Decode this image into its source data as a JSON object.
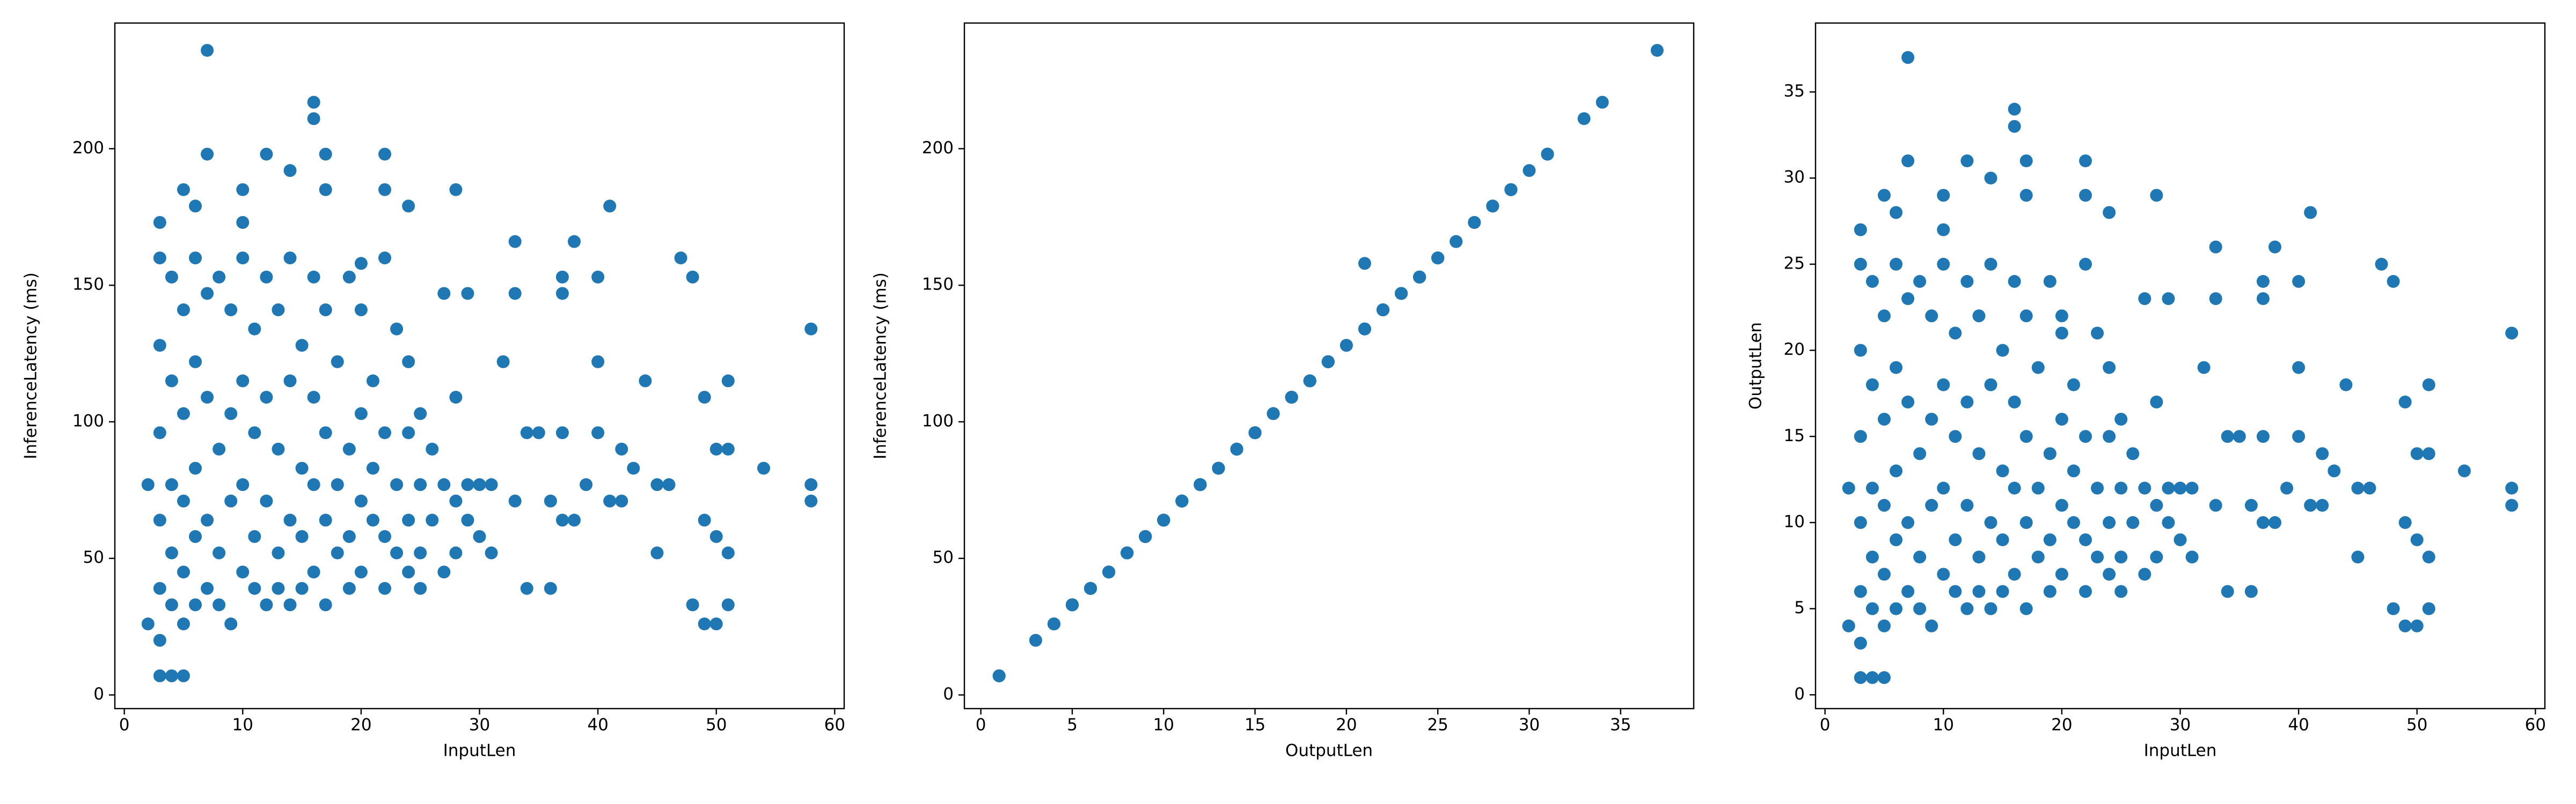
{
  "chart_data": [
    {
      "type": "scatter",
      "x_label": "InputLen",
      "y_label": "InferenceLatency (ms)",
      "color": "#1f77b4",
      "xlim": [
        -0.8,
        60.8
      ],
      "ylim": [
        -5,
        246
      ],
      "xticks": [
        0,
        10,
        20,
        30,
        40,
        50,
        60
      ],
      "yticks": [
        0,
        50,
        100,
        150,
        200
      ],
      "x": [
        3,
        3,
        3,
        3,
        3,
        4,
        4,
        4,
        4,
        4,
        5,
        5,
        5,
        5,
        5,
        6,
        6,
        6,
        6,
        6,
        7,
        7,
        7,
        7,
        8,
        8,
        8,
        8,
        9,
        9,
        9,
        9,
        10,
        10,
        10,
        10,
        11,
        11,
        11,
        11,
        12,
        12,
        12,
        12,
        13,
        13,
        13,
        13,
        14,
        14,
        14,
        14,
        15,
        15,
        15,
        15,
        16,
        16,
        16,
        16,
        17,
        17,
        17,
        17,
        18,
        18,
        18,
        19,
        19,
        19,
        19,
        20,
        20,
        20,
        20,
        21,
        21,
        21,
        22,
        22,
        22,
        22,
        23,
        23,
        23,
        24,
        24,
        24,
        24,
        25,
        25,
        25,
        25,
        26,
        26,
        27,
        27,
        27,
        28,
        28,
        28,
        29,
        29,
        29,
        30,
        30,
        31,
        31,
        2,
        2,
        3,
        3,
        3,
        4,
        5,
        7,
        7,
        5,
        6,
        10,
        10,
        12,
        14,
        16,
        16,
        17,
        17,
        22,
        22,
        24,
        28,
        20,
        33,
        33,
        38,
        37,
        37,
        41,
        40,
        47,
        48,
        58,
        40,
        32,
        44,
        51,
        49,
        35,
        34,
        37,
        40,
        42,
        50,
        51,
        54,
        58,
        58,
        45,
        46,
        43,
        39,
        41,
        42,
        45,
        49,
        50,
        51,
        48,
        49,
        50,
        51,
        34,
        36,
        37,
        38,
        36,
        33
      ],
      "y": [
        160,
        128,
        96,
        64,
        39,
        153,
        115,
        77,
        52,
        33,
        141,
        103,
        71,
        45,
        26,
        160,
        122,
        83,
        58,
        33,
        147,
        109,
        64,
        39,
        153,
        90,
        52,
        33,
        141,
        103,
        71,
        26,
        160,
        115,
        77,
        45,
        134,
        96,
        58,
        39,
        153,
        109,
        71,
        33,
        141,
        90,
        52,
        39,
        160,
        115,
        64,
        33,
        128,
        83,
        58,
        39,
        153,
        109,
        77,
        45,
        141,
        96,
        64,
        33,
        122,
        77,
        52,
        153,
        90,
        58,
        39,
        141,
        103,
        71,
        45,
        115,
        83,
        64,
        160,
        96,
        58,
        39,
        134,
        77,
        52,
        122,
        96,
        64,
        45,
        103,
        77,
        52,
        39,
        90,
        64,
        147,
        77,
        45,
        109,
        71,
        52,
        147,
        77,
        64,
        77,
        58,
        77,
        52,
        77,
        26,
        173,
        20,
        7,
        7,
        7,
        236,
        198,
        185,
        179,
        185,
        173,
        198,
        192,
        217,
        211,
        198,
        185,
        198,
        185,
        179,
        185,
        158,
        166,
        147,
        166,
        153,
        147,
        179,
        153,
        160,
        153,
        134,
        122,
        122,
        115,
        115,
        109,
        96,
        96,
        96,
        96,
        90,
        90,
        90,
        83,
        77,
        71,
        77,
        77,
        83,
        77,
        71,
        71,
        52,
        64,
        58,
        52,
        33,
        26,
        26,
        33,
        39,
        39,
        64,
        64,
        71,
        71
      ]
    },
    {
      "type": "scatter",
      "x_label": "OutputLen",
      "y_label": "InferenceLatency (ms)",
      "color": "#1f77b4",
      "xlim": [
        -0.9,
        39
      ],
      "ylim": [
        -5,
        246
      ],
      "xticks": [
        0,
        5,
        10,
        15,
        20,
        25,
        30,
        35
      ],
      "yticks": [
        0,
        50,
        100,
        150,
        200
      ],
      "x": [
        25,
        20,
        15,
        10,
        6,
        24,
        18,
        12,
        8,
        5,
        22,
        16,
        11,
        7,
        4,
        25,
        19,
        13,
        9,
        5,
        23,
        17,
        10,
        6,
        24,
        14,
        8,
        5,
        22,
        16,
        11,
        4,
        25,
        18,
        12,
        7,
        21,
        15,
        9,
        6,
        24,
        17,
        11,
        5,
        22,
        14,
        8,
        6,
        25,
        18,
        10,
        5,
        20,
        13,
        9,
        6,
        24,
        17,
        12,
        7,
        22,
        15,
        10,
        5,
        19,
        12,
        8,
        24,
        14,
        9,
        6,
        22,
        16,
        11,
        7,
        18,
        13,
        10,
        25,
        15,
        9,
        6,
        21,
        12,
        8,
        19,
        15,
        10,
        7,
        16,
        12,
        8,
        6,
        14,
        10,
        23,
        12,
        7,
        17,
        11,
        8,
        23,
        12,
        10,
        12,
        9,
        12,
        8,
        12,
        4,
        27,
        3,
        1,
        1,
        1,
        37,
        31,
        29,
        28,
        29,
        27,
        31,
        30,
        34,
        33,
        31,
        29,
        31,
        29,
        28,
        29,
        21,
        26,
        23,
        26,
        24,
        23,
        28,
        24,
        25,
        24,
        21,
        19,
        19,
        18,
        18,
        17,
        15,
        15,
        15,
        15,
        14,
        14,
        14,
        13,
        12,
        11,
        12,
        12,
        13,
        12,
        11,
        11,
        8,
        10,
        9,
        8,
        5,
        4,
        4,
        5,
        6,
        6,
        10,
        10,
        11,
        11
      ],
      "y": [
        160,
        128,
        96,
        64,
        39,
        153,
        115,
        77,
        52,
        33,
        141,
        103,
        71,
        45,
        26,
        160,
        122,
        83,
        58,
        33,
        147,
        109,
        64,
        39,
        153,
        90,
        52,
        33,
        141,
        103,
        71,
        26,
        160,
        115,
        77,
        45,
        134,
        96,
        58,
        39,
        153,
        109,
        71,
        33,
        141,
        90,
        52,
        39,
        160,
        115,
        64,
        33,
        128,
        83,
        58,
        39,
        153,
        109,
        77,
        45,
        141,
        96,
        64,
        33,
        122,
        77,
        52,
        153,
        90,
        58,
        39,
        141,
        103,
        71,
        45,
        115,
        83,
        64,
        160,
        96,
        58,
        39,
        134,
        77,
        52,
        122,
        96,
        64,
        45,
        103,
        77,
        52,
        39,
        90,
        64,
        147,
        77,
        45,
        109,
        71,
        52,
        147,
        77,
        64,
        77,
        58,
        77,
        52,
        77,
        26,
        173,
        20,
        7,
        7,
        7,
        236,
        198,
        185,
        179,
        185,
        173,
        198,
        192,
        217,
        211,
        198,
        185,
        198,
        185,
        179,
        185,
        158,
        166,
        147,
        166,
        153,
        147,
        179,
        153,
        160,
        153,
        134,
        122,
        122,
        115,
        115,
        109,
        96,
        96,
        96,
        96,
        90,
        90,
        90,
        83,
        77,
        71,
        77,
        77,
        83,
        77,
        71,
        71,
        52,
        64,
        58,
        52,
        33,
        26,
        26,
        33,
        39,
        39,
        64,
        64,
        71,
        71
      ]
    },
    {
      "type": "scatter",
      "x_label": "InputLen",
      "y_label": "OutputLen",
      "color": "#1f77b4",
      "xlim": [
        -0.8,
        60.8
      ],
      "ylim": [
        -0.8,
        39
      ],
      "xticks": [
        0,
        10,
        20,
        30,
        40,
        50,
        60
      ],
      "yticks": [
        0,
        5,
        10,
        15,
        20,
        25,
        30,
        35
      ],
      "x": [
        3,
        3,
        3,
        3,
        3,
        4,
        4,
        4,
        4,
        4,
        5,
        5,
        5,
        5,
        5,
        6,
        6,
        6,
        6,
        6,
        7,
        7,
        7,
        7,
        8,
        8,
        8,
        8,
        9,
        9,
        9,
        9,
        10,
        10,
        10,
        10,
        11,
        11,
        11,
        11,
        12,
        12,
        12,
        12,
        13,
        13,
        13,
        13,
        14,
        14,
        14,
        14,
        15,
        15,
        15,
        15,
        16,
        16,
        16,
        16,
        17,
        17,
        17,
        17,
        18,
        18,
        18,
        19,
        19,
        19,
        19,
        20,
        20,
        20,
        20,
        21,
        21,
        21,
        22,
        22,
        22,
        22,
        23,
        23,
        23,
        24,
        24,
        24,
        24,
        25,
        25,
        25,
        25,
        26,
        26,
        27,
        27,
        27,
        28,
        28,
        28,
        29,
        29,
        29,
        30,
        30,
        31,
        31,
        2,
        2,
        3,
        3,
        3,
        4,
        5,
        7,
        7,
        5,
        6,
        10,
        10,
        12,
        14,
        16,
        16,
        17,
        17,
        22,
        22,
        24,
        28,
        20,
        33,
        33,
        38,
        37,
        37,
        41,
        40,
        47,
        48,
        58,
        40,
        32,
        44,
        51,
        49,
        35,
        34,
        37,
        40,
        42,
        50,
        51,
        54,
        58,
        58,
        45,
        46,
        43,
        39,
        41,
        42,
        45,
        49,
        50,
        51,
        48,
        49,
        50,
        51,
        34,
        36,
        37,
        38,
        36,
        33
      ],
      "y": [
        25,
        20,
        15,
        10,
        6,
        24,
        18,
        12,
        8,
        5,
        22,
        16,
        11,
        7,
        4,
        25,
        19,
        13,
        9,
        5,
        23,
        17,
        10,
        6,
        24,
        14,
        8,
        5,
        22,
        16,
        11,
        4,
        25,
        18,
        12,
        7,
        21,
        15,
        9,
        6,
        24,
        17,
        11,
        5,
        22,
        14,
        8,
        6,
        25,
        18,
        10,
        5,
        20,
        13,
        9,
        6,
        24,
        17,
        12,
        7,
        22,
        15,
        10,
        5,
        19,
        12,
        8,
        24,
        14,
        9,
        6,
        22,
        16,
        11,
        7,
        18,
        13,
        10,
        25,
        15,
        9,
        6,
        21,
        12,
        8,
        19,
        15,
        10,
        7,
        16,
        12,
        8,
        6,
        14,
        10,
        23,
        12,
        7,
        17,
        11,
        8,
        23,
        12,
        10,
        12,
        9,
        12,
        8,
        12,
        4,
        27,
        3,
        1,
        1,
        1,
        37,
        31,
        29,
        28,
        29,
        27,
        31,
        30,
        34,
        33,
        31,
        29,
        31,
        29,
        28,
        29,
        21,
        26,
        23,
        26,
        24,
        23,
        28,
        24,
        25,
        24,
        21,
        19,
        19,
        18,
        18,
        17,
        15,
        15,
        15,
        15,
        14,
        14,
        14,
        13,
        12,
        11,
        12,
        12,
        13,
        12,
        11,
        11,
        8,
        10,
        9,
        8,
        5,
        4,
        4,
        5,
        6,
        6,
        10,
        10,
        11,
        11
      ]
    }
  ]
}
